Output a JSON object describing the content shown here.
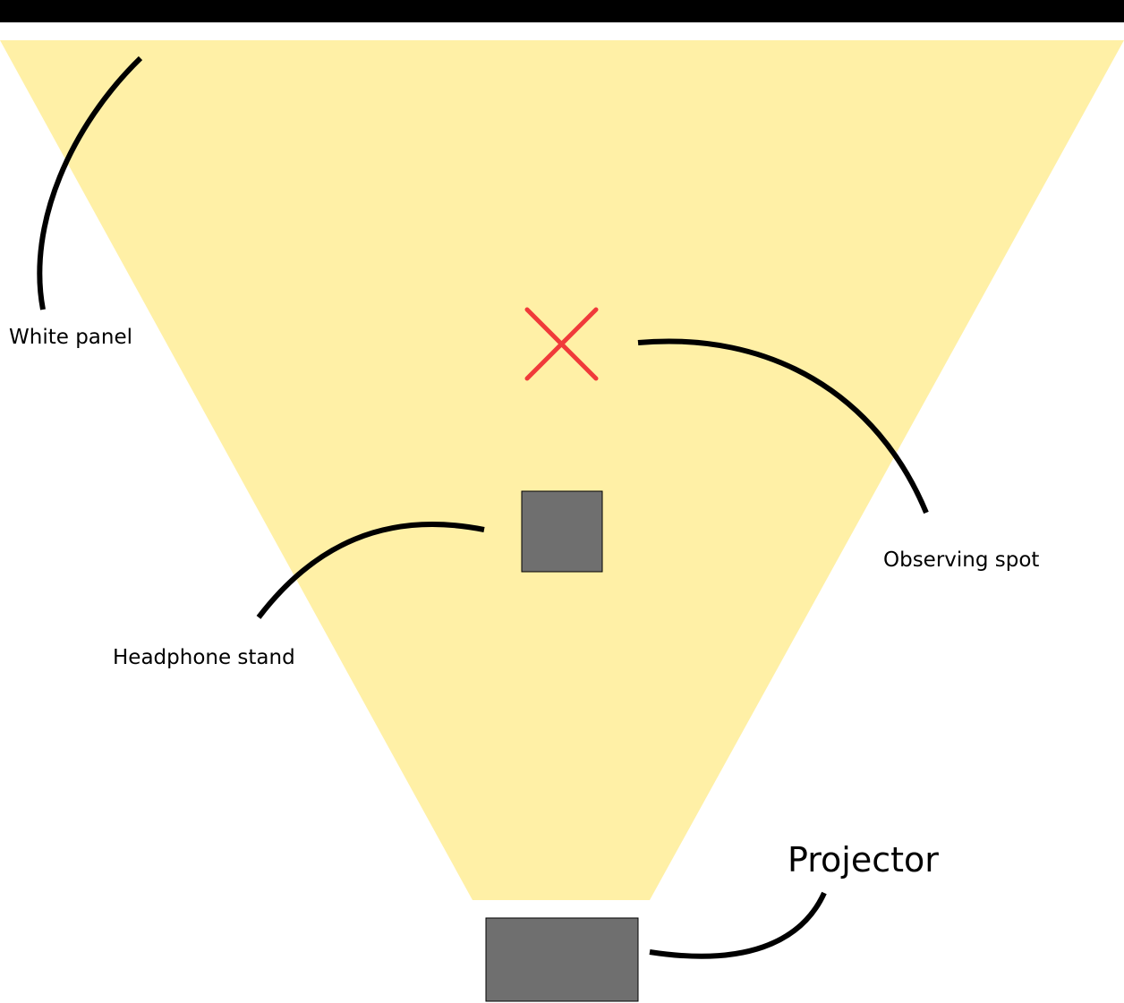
{
  "labels": {
    "white_panel": "White panel",
    "observing_spot": "Observing spot",
    "headphone_stand": "Headphone stand",
    "projector": "Projector"
  },
  "colors": {
    "panel_bar": "#000000",
    "light_beam": "#fff0a6",
    "object_fill": "#6f6f6f",
    "marker": "#f03a3a",
    "leader_line": "#000000"
  }
}
